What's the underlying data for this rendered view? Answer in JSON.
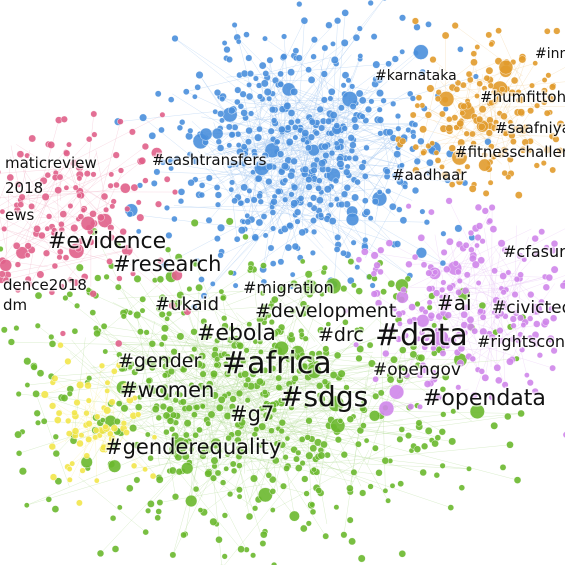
{
  "nodes": [
    {
      "label": "#inn"
    },
    {
      "label": "#karnataka"
    },
    {
      "label": "#humfittoh"
    },
    {
      "label": "#saafniya"
    },
    {
      "label": "#fitnesschaller"
    },
    {
      "label": "#cashtransfers"
    },
    {
      "label": "maticreview"
    },
    {
      "label": "2018"
    },
    {
      "label": "#aadhaar"
    },
    {
      "label": "ews"
    },
    {
      "label": "#evidence"
    },
    {
      "label": "#cfasur"
    },
    {
      "label": "#research"
    },
    {
      "label": "dence2018"
    },
    {
      "label": "#migration"
    },
    {
      "label": "dm"
    },
    {
      "label": "#ukaid"
    },
    {
      "label": "#development"
    },
    {
      "label": "#ai"
    },
    {
      "label": "#civicted"
    },
    {
      "label": "#ebola"
    },
    {
      "label": "#drc"
    },
    {
      "label": "#data"
    },
    {
      "label": "#rightscon"
    },
    {
      "label": "#gender"
    },
    {
      "label": "#africa"
    },
    {
      "label": "#opengov"
    },
    {
      "label": "#women"
    },
    {
      "label": "#sdgs"
    },
    {
      "label": "#opendata"
    },
    {
      "label": "#g7"
    },
    {
      "label": "#genderequality"
    }
  ]
}
